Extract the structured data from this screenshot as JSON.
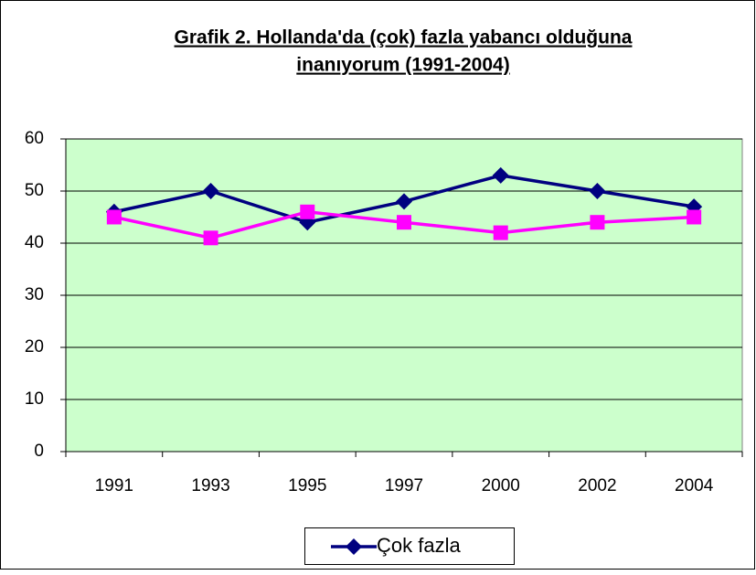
{
  "chart_data": {
    "type": "line",
    "title": [
      "Grafik 2. Hollanda'da (çok) fazla yabancı olduğuna",
      "inanıyorum (1991-2004)"
    ],
    "categories": [
      "1991",
      "1993",
      "1995",
      "1997",
      "2000",
      "2002",
      "2004"
    ],
    "series": [
      {
        "name": "Çok fazla",
        "color": "#000080",
        "marker": "diamond",
        "values": [
          46,
          50,
          44,
          48,
          53,
          50,
          47
        ]
      },
      {
        "color": "#ff00ff",
        "marker": "square",
        "values": [
          45,
          41,
          46,
          44,
          42,
          44,
          45
        ]
      }
    ],
    "ylim": [
      0,
      60
    ],
    "yticks": [
      0,
      10,
      20,
      30,
      40,
      50,
      60
    ],
    "grid": true,
    "legend": "bottom",
    "plot_background": "#ccffcc"
  }
}
